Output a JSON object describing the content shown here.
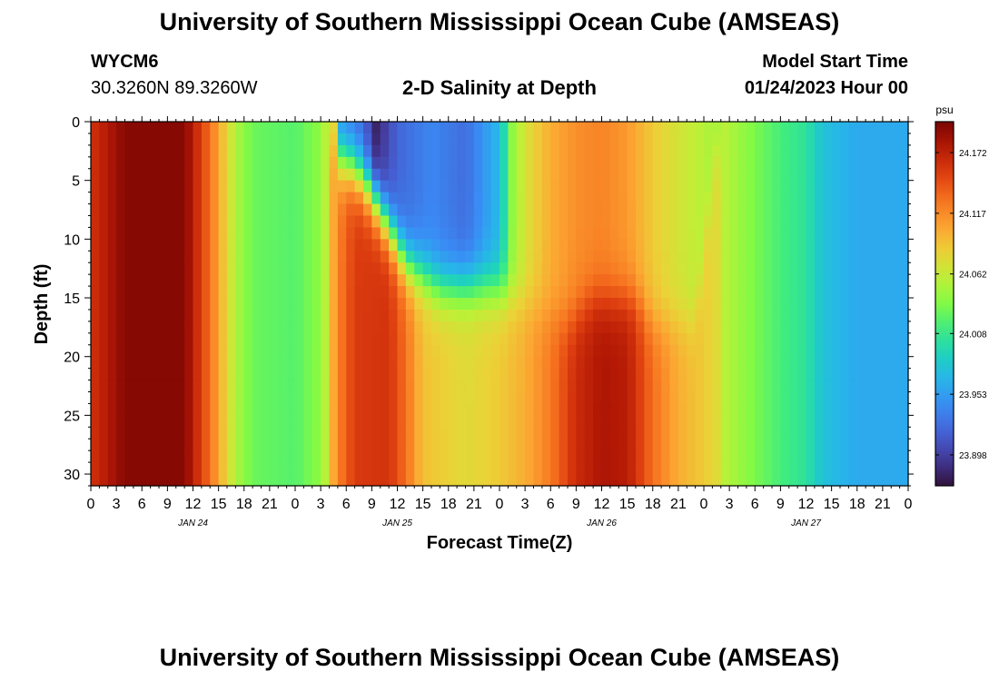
{
  "page": {
    "title": "University of Southern Mississippi Ocean Cube (AMSEAS)",
    "title_repeat": "University of Southern Mississippi Ocean Cube (AMSEAS)",
    "station": "WYCM6",
    "coords": "30.3260N  89.3260W",
    "plot_title": "2-D Salinity at Depth",
    "model_start_label": "Model Start Time",
    "model_start_value": "01/24/2023 Hour 00"
  },
  "chart_data": {
    "type": "heatmap",
    "title": "2-D Salinity at Depth",
    "xlabel": "Forecast Time(Z)",
    "ylabel": "Depth (ft)",
    "x_range_hours": [
      0,
      96
    ],
    "ylim": [
      0,
      31
    ],
    "y_inverted": true,
    "y_ticks": [
      0,
      5,
      10,
      15,
      20,
      25,
      30
    ],
    "x_tick_labels": [
      "0",
      "3",
      "6",
      "9",
      "12",
      "15",
      "18",
      "21",
      "0",
      "3",
      "6",
      "9",
      "12",
      "15",
      "18",
      "21",
      "0",
      "3",
      "6",
      "9",
      "12",
      "15",
      "18",
      "21",
      "0",
      "3",
      "6",
      "9",
      "12",
      "15",
      "18",
      "21",
      "0"
    ],
    "day_labels": [
      {
        "label": "JAN 24",
        "hour": 12
      },
      {
        "label": "JAN 25",
        "hour": 36
      },
      {
        "label": "JAN 26",
        "hour": 60
      },
      {
        "label": "JAN 27",
        "hour": 84
      }
    ],
    "colorbar": {
      "unit": "psu",
      "min": 23.87,
      "max": 24.2,
      "ticks": [
        "24.172",
        "24.117",
        "24.062",
        "24.008",
        "23.953",
        "23.898"
      ]
    },
    "surface_profile": [
      {
        "hour": 0,
        "value": 24.16
      },
      {
        "hour": 4,
        "value": 24.195
      },
      {
        "hour": 11,
        "value": 24.195
      },
      {
        "hour": 14,
        "value": 24.13
      },
      {
        "hour": 15.5,
        "value": 24.09
      },
      {
        "hour": 17,
        "value": 24.05
      },
      {
        "hour": 19,
        "value": 24.015
      },
      {
        "hour": 24,
        "value": 24.005
      },
      {
        "hour": 27,
        "value": 24.03
      },
      {
        "hour": 28.5,
        "value": 24.065
      },
      {
        "hour": 29.5,
        "value": 23.94
      },
      {
        "hour": 32,
        "value": 23.92
      },
      {
        "hour": 33.5,
        "value": 23.88
      },
      {
        "hour": 36,
        "value": 23.92
      },
      {
        "hour": 40,
        "value": 23.94
      },
      {
        "hour": 44,
        "value": 23.925
      },
      {
        "hour": 48,
        "value": 23.97
      },
      {
        "hour": 49.5,
        "value": 24.04
      },
      {
        "hour": 51,
        "value": 24.07
      },
      {
        "hour": 54,
        "value": 24.1
      },
      {
        "hour": 57,
        "value": 24.115
      },
      {
        "hour": 60,
        "value": 24.12
      },
      {
        "hour": 63,
        "value": 24.11
      },
      {
        "hour": 66,
        "value": 24.085
      },
      {
        "hour": 69,
        "value": 24.068
      },
      {
        "hour": 72,
        "value": 24.055
      },
      {
        "hour": 75,
        "value": 24.04
      },
      {
        "hour": 78,
        "value": 24.02
      },
      {
        "hour": 81,
        "value": 24.005
      },
      {
        "hour": 84,
        "value": 24.0
      },
      {
        "hour": 86,
        "value": 23.975
      },
      {
        "hour": 90,
        "value": 23.96
      },
      {
        "hour": 96,
        "value": 23.96
      }
    ],
    "deep_profile": [
      {
        "hour": 0,
        "value": 24.16
      },
      {
        "hour": 4,
        "value": 24.195
      },
      {
        "hour": 11,
        "value": 24.195
      },
      {
        "hour": 14,
        "value": 24.13
      },
      {
        "hour": 15.5,
        "value": 24.09
      },
      {
        "hour": 17,
        "value": 24.055
      },
      {
        "hour": 19,
        "value": 24.04
      },
      {
        "hour": 24,
        "value": 24.035
      },
      {
        "hour": 27,
        "value": 24.05
      },
      {
        "hour": 29,
        "value": 24.12
      },
      {
        "hour": 31,
        "value": 24.155
      },
      {
        "hour": 35,
        "value": 24.16
      },
      {
        "hour": 37,
        "value": 24.13
      },
      {
        "hour": 39,
        "value": 24.09
      },
      {
        "hour": 44,
        "value": 24.075
      },
      {
        "hour": 48,
        "value": 24.085
      },
      {
        "hour": 51,
        "value": 24.1
      },
      {
        "hour": 54,
        "value": 24.125
      },
      {
        "hour": 57,
        "value": 24.165
      },
      {
        "hour": 60,
        "value": 24.18
      },
      {
        "hour": 63,
        "value": 24.175
      },
      {
        "hour": 66,
        "value": 24.13
      },
      {
        "hour": 69,
        "value": 24.1
      },
      {
        "hour": 72,
        "value": 24.085
      },
      {
        "hour": 75,
        "value": 24.065
      },
      {
        "hour": 78,
        "value": 24.045
      },
      {
        "hour": 81,
        "value": 24.025
      },
      {
        "hour": 84,
        "value": 24.005
      },
      {
        "hour": 86,
        "value": 23.975
      },
      {
        "hour": 90,
        "value": 23.96
      },
      {
        "hour": 96,
        "value": 23.96
      }
    ],
    "surface_layer_depth_ft": [
      {
        "hour": 0,
        "value": 0
      },
      {
        "hour": 28,
        "value": 0
      },
      {
        "hour": 29,
        "value": 3
      },
      {
        "hour": 31,
        "value": 4
      },
      {
        "hour": 33,
        "value": 6
      },
      {
        "hour": 35,
        "value": 9
      },
      {
        "hour": 37,
        "value": 12
      },
      {
        "hour": 39,
        "value": 13
      },
      {
        "hour": 41,
        "value": 14
      },
      {
        "hour": 47,
        "value": 14
      },
      {
        "hour": 50,
        "value": 15
      },
      {
        "hour": 53,
        "value": 16
      },
      {
        "hour": 56,
        "value": 17
      },
      {
        "hour": 59,
        "value": 15
      },
      {
        "hour": 62,
        "value": 15
      },
      {
        "hour": 64,
        "value": 15
      },
      {
        "hour": 66,
        "value": 17
      },
      {
        "hour": 69,
        "value": 17
      },
      {
        "hour": 71,
        "value": 17
      },
      {
        "hour": 74,
        "value": 0
      },
      {
        "hour": 96,
        "value": 0
      }
    ]
  }
}
